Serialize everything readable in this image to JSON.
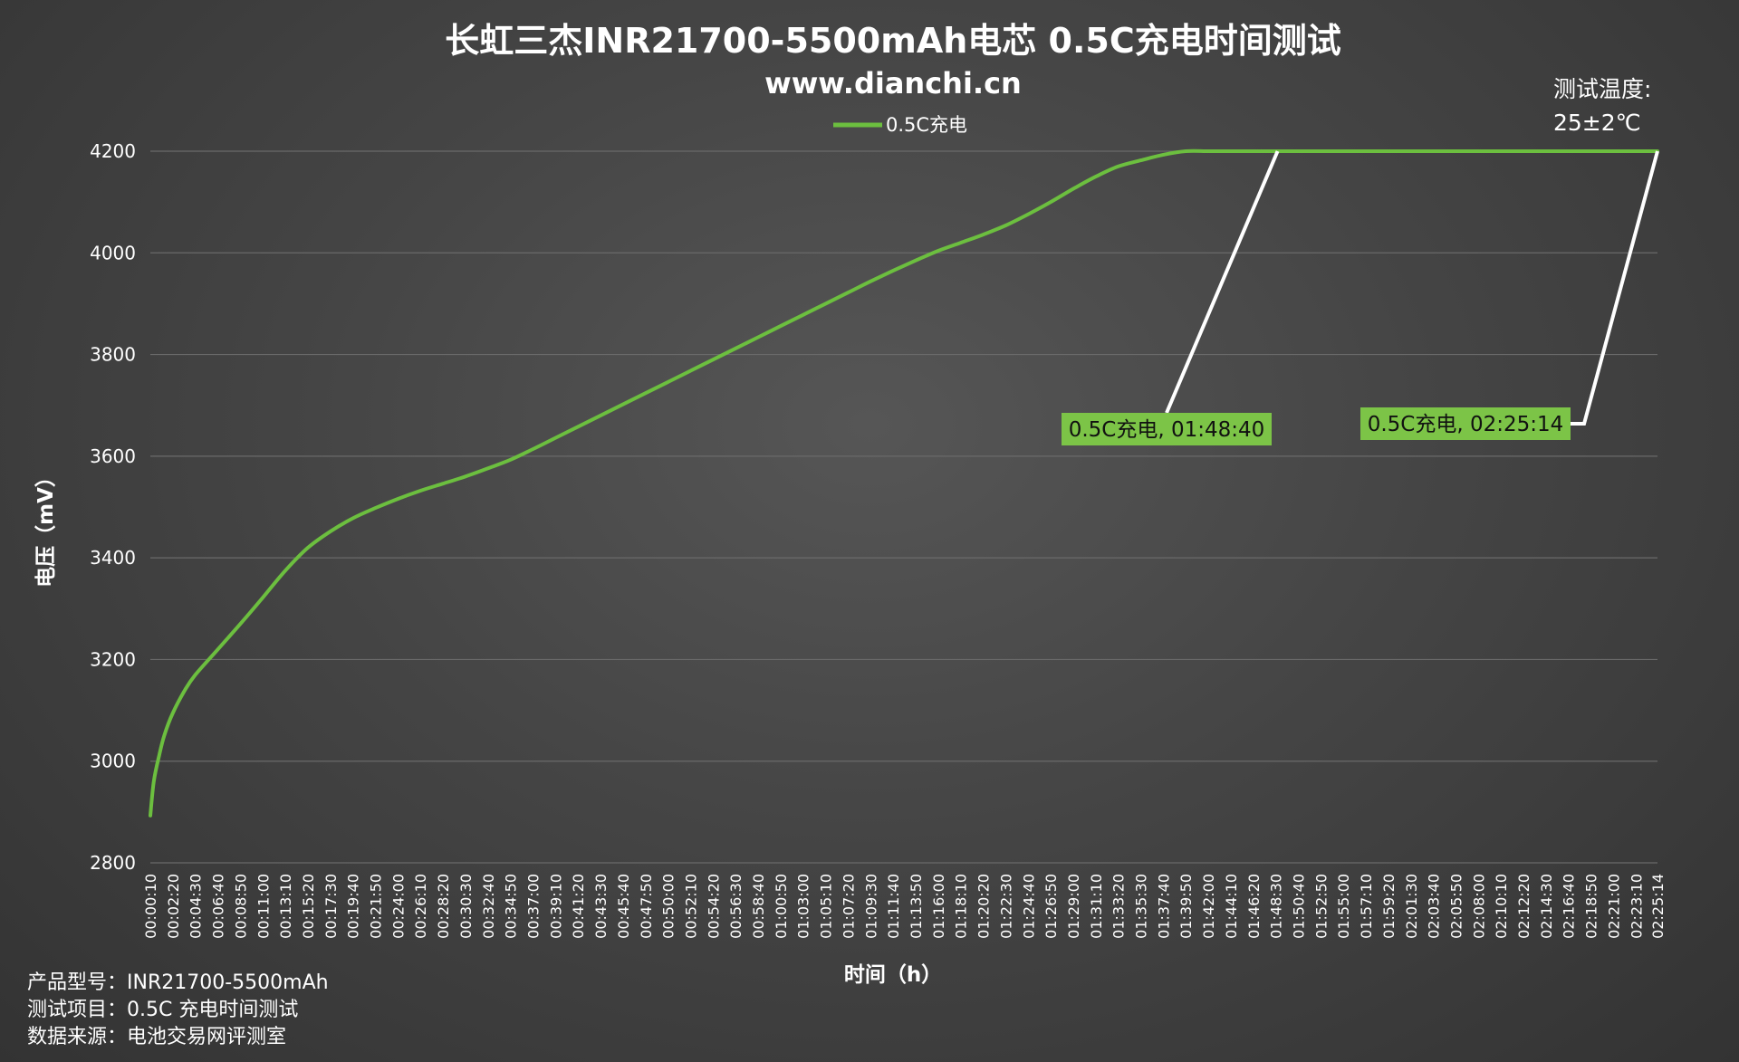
{
  "chart_data": {
    "type": "line",
    "title": "长虹三杰INR21700-5500mAh电芯 0.5C充电时间测试",
    "subtitle": "www.dianchi.cn",
    "xlabel": "时间（h）",
    "ylabel": "电压（mV）",
    "ylim": [
      2800,
      4200
    ],
    "yticks": [
      2800,
      3000,
      3200,
      3400,
      3600,
      3800,
      4000,
      4200
    ],
    "grid": true,
    "legend_position": "top",
    "colors": {
      "series": "#6cbf3f",
      "callout_bg": "#7cc447",
      "leader": "#ffffff",
      "grid": "#6a6a6a"
    },
    "xticks": [
      "00:00:10",
      "00:02:20",
      "00:04:30",
      "00:06:40",
      "00:08:50",
      "00:11:00",
      "00:13:10",
      "00:15:20",
      "00:17:30",
      "00:19:40",
      "00:21:50",
      "00:24:00",
      "00:26:10",
      "00:28:20",
      "00:30:30",
      "00:32:40",
      "00:34:50",
      "00:37:00",
      "00:39:10",
      "00:41:20",
      "00:43:30",
      "00:45:40",
      "00:47:50",
      "00:50:00",
      "00:52:10",
      "00:54:20",
      "00:56:30",
      "00:58:40",
      "01:00:50",
      "01:03:00",
      "01:05:10",
      "01:07:20",
      "01:09:30",
      "01:11:40",
      "01:13:50",
      "01:16:00",
      "01:18:10",
      "01:20:20",
      "01:22:30",
      "01:24:40",
      "01:26:50",
      "01:29:00",
      "01:31:10",
      "01:33:20",
      "01:35:30",
      "01:37:40",
      "01:39:50",
      "01:42:00",
      "01:44:10",
      "01:46:20",
      "01:48:30",
      "01:50:40",
      "01:52:50",
      "01:55:00",
      "01:57:10",
      "01:59:20",
      "02:01:30",
      "02:03:40",
      "02:05:50",
      "02:08:00",
      "02:10:10",
      "02:12:20",
      "02:14:30",
      "02:16:40",
      "02:18:50",
      "02:21:00",
      "02:23:10",
      "02:25:14"
    ],
    "series": [
      {
        "name": "0.5C充电",
        "x": [
          "00:00:10",
          "00:00:30",
          "00:01:00",
          "00:01:30",
          "00:02:20",
          "00:03:30",
          "00:04:30",
          "00:06:40",
          "00:08:50",
          "00:11:00",
          "00:13:10",
          "00:15:20",
          "00:17:30",
          "00:19:40",
          "00:21:50",
          "00:24:00",
          "00:26:10",
          "00:28:20",
          "00:30:30",
          "00:32:40",
          "00:34:50",
          "00:37:00",
          "00:39:10",
          "00:41:20",
          "00:43:30",
          "00:45:40",
          "00:47:50",
          "00:50:00",
          "00:52:10",
          "00:54:20",
          "00:56:30",
          "00:58:40",
          "01:00:50",
          "01:03:00",
          "01:05:10",
          "01:07:20",
          "01:09:30",
          "01:11:40",
          "01:13:50",
          "01:16:00",
          "01:18:10",
          "01:20:20",
          "01:22:30",
          "01:24:40",
          "01:26:50",
          "01:29:00",
          "01:31:10",
          "01:33:20",
          "01:35:30",
          "01:37:40",
          "01:39:50",
          "01:42:00",
          "01:44:10",
          "01:46:20",
          "01:48:40",
          "01:50:40",
          "02:00:00",
          "02:10:10",
          "02:20:00",
          "02:25:14"
        ],
        "values": [
          2893,
          2960,
          3010,
          3050,
          3095,
          3140,
          3170,
          3220,
          3270,
          3322,
          3375,
          3420,
          3452,
          3478,
          3498,
          3516,
          3532,
          3546,
          3560,
          3576,
          3593,
          3614,
          3636,
          3658,
          3680,
          3702,
          3724,
          3746,
          3768,
          3790,
          3812,
          3834,
          3856,
          3878,
          3900,
          3922,
          3944,
          3965,
          3985,
          4004,
          4020,
          4036,
          4054,
          4076,
          4100,
          4126,
          4150,
          4170,
          4182,
          4193,
          4200,
          4200,
          4200,
          4200,
          4200,
          4200,
          4200,
          4200,
          4200,
          4200
        ]
      }
    ],
    "annotations": [
      {
        "text": "0.5C充电, 01:48:40",
        "x": "01:48:40",
        "y": 4200
      },
      {
        "text": "0.5C充电, 02:25:14",
        "x": "02:25:14",
        "y": 4200
      }
    ],
    "note": {
      "line1": "测试温度:",
      "line2": "25±2℃"
    }
  },
  "info": {
    "line1": "产品型号：INR21700-5500mAh",
    "line2": "测试项目：0.5C 充电时间测试",
    "line3": "数据来源：电池交易网评测室"
  }
}
